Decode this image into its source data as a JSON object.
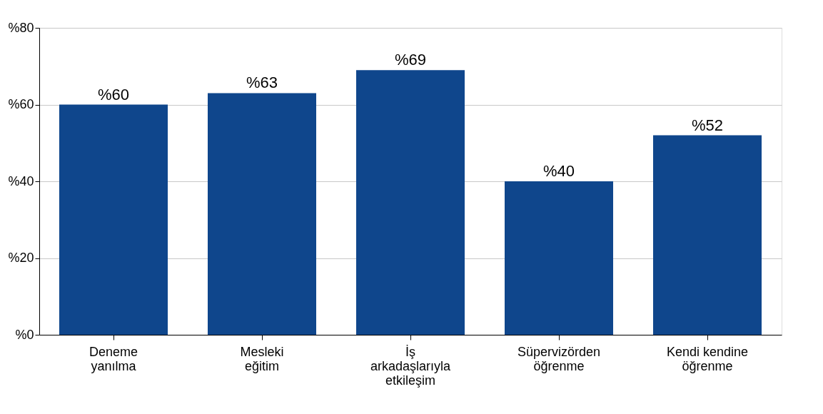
{
  "chart_data": {
    "type": "bar",
    "categories": [
      "Deneme yanılma",
      "Mesleki eğitim",
      "İş arkadaşlarıyla etkileşim",
      "Süpervizörden öğrenme",
      "Kendi kendine öğrenme"
    ],
    "values": [
      60,
      63,
      69,
      40,
      52
    ],
    "value_labels": [
      "%60",
      "%63",
      "%69",
      "%40",
      "%52"
    ],
    "color": "#0f468c",
    "ylim": [
      0,
      80
    ],
    "yticks": [
      {
        "value": 0,
        "label": "%0"
      },
      {
        "value": 20,
        "label": "%20"
      },
      {
        "value": 40,
        "label": "%40"
      },
      {
        "value": 60,
        "label": "%60"
      },
      {
        "value": 80,
        "label": "%80"
      }
    ],
    "grid": "y"
  }
}
